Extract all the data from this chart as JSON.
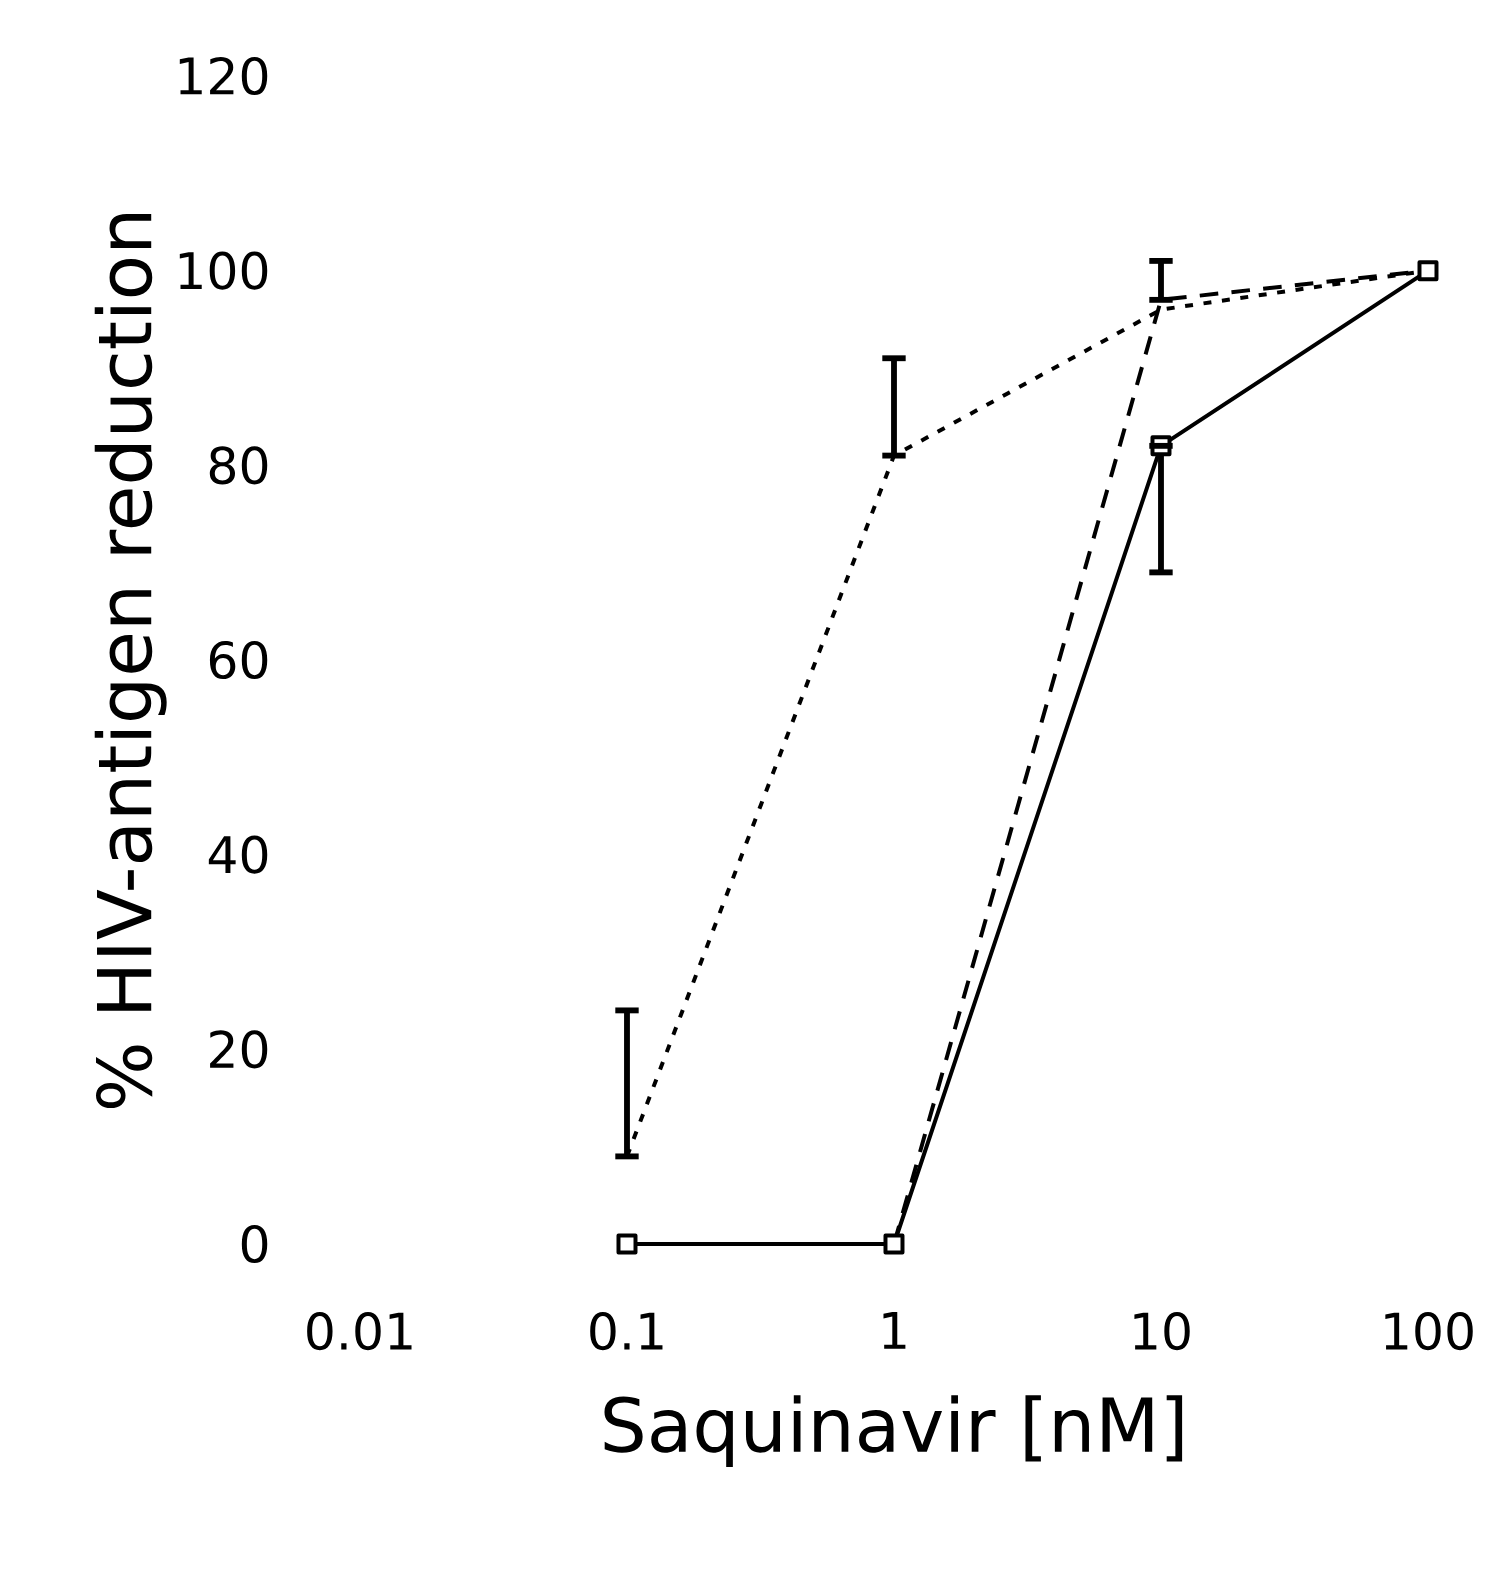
{
  "chart_data": {
    "type": "line",
    "xlabel": "Saquinavir [nM]",
    "ylabel": "% HIV-antigen reduction",
    "log": "x",
    "xlim": [
      0.01,
      100
    ],
    "xticks": [
      0.01,
      0.1,
      1,
      10,
      100
    ],
    "ylim": [
      0,
      120
    ],
    "yticks": [
      0,
      20,
      40,
      60,
      80,
      100,
      120
    ],
    "grid": false,
    "series": [
      {
        "color": "#000000",
        "line_style": "dotted",
        "marker": "none",
        "x": [
          0.1,
          1,
          10,
          100
        ],
        "values": [
          9,
          81,
          96,
          100
        ],
        "errors": [
          [
            9,
            24
          ],
          [
            81,
            91
          ],
          null,
          null
        ]
      },
      {
        "color": "#000000",
        "line_style": "dashed",
        "marker": "none",
        "x": [
          1,
          10,
          100
        ],
        "values": [
          0,
          97,
          100
        ],
        "errors": [
          null,
          [
            97,
            101
          ],
          null
        ]
      },
      {
        "color": "#000000",
        "line_style": "solid",
        "marker": "square",
        "x": [
          0.1,
          1,
          10,
          100
        ],
        "values": [
          0,
          0,
          82,
          100
        ],
        "errors": [
          null,
          null,
          [
            69,
            82
          ],
          null
        ]
      }
    ]
  }
}
